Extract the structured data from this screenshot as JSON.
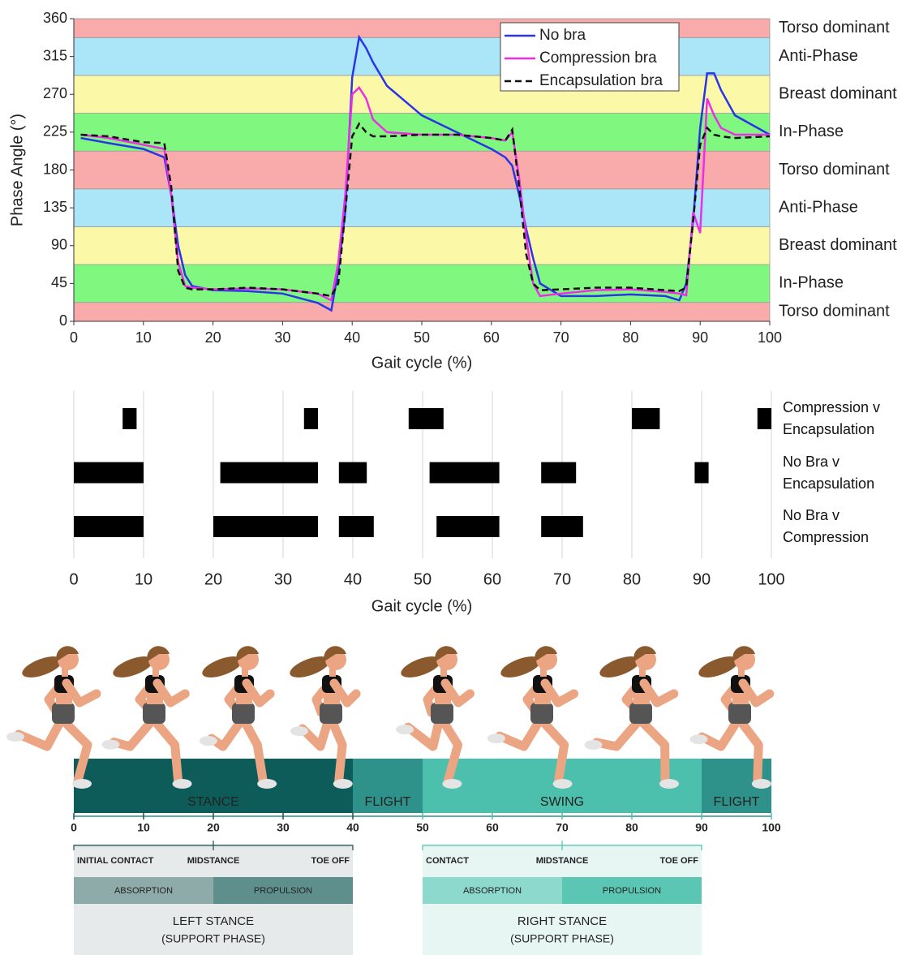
{
  "chart_data": [
    {
      "type": "line",
      "x": [
        1,
        5,
        10,
        13,
        14,
        15,
        16,
        17,
        20,
        25,
        30,
        35,
        37,
        38,
        39,
        40,
        41,
        42,
        43,
        45,
        50,
        55,
        60,
        62,
        63,
        64,
        65,
        66,
        67,
        70,
        75,
        80,
        85,
        87,
        88,
        89,
        90,
        91,
        92,
        93,
        95,
        100
      ],
      "series": [
        {
          "name": "No bra",
          "color": "#2a35e8",
          "dashed": false,
          "values": [
            218,
            212,
            205,
            195,
            150,
            90,
            55,
            42,
            37,
            36,
            33,
            22,
            13,
            60,
            130,
            290,
            338,
            325,
            308,
            280,
            245,
            225,
            205,
            195,
            185,
            150,
            110,
            75,
            45,
            30,
            30,
            32,
            30,
            25,
            45,
            120,
            230,
            295,
            295,
            275,
            245,
            222
          ]
        },
        {
          "name": "Compression bra",
          "color": "#ef2de8",
          "dashed": false,
          "values": [
            222,
            218,
            210,
            205,
            150,
            70,
            42,
            40,
            38,
            39,
            38,
            33,
            25,
            70,
            150,
            270,
            278,
            265,
            240,
            225,
            222,
            222,
            218,
            215,
            225,
            170,
            100,
            45,
            30,
            33,
            37,
            38,
            35,
            33,
            31,
            130,
            105,
            265,
            245,
            230,
            222,
            222
          ]
        },
        {
          "name": "Encapsulation bra",
          "color": "#111111",
          "dashed": true,
          "values": [
            222,
            220,
            213,
            212,
            160,
            60,
            40,
            38,
            38,
            40,
            38,
            33,
            30,
            45,
            130,
            220,
            235,
            225,
            220,
            220,
            222,
            222,
            218,
            215,
            228,
            160,
            80,
            45,
            37,
            38,
            40,
            40,
            37,
            36,
            40,
            120,
            210,
            230,
            222,
            220,
            218,
            220
          ]
        }
      ],
      "xlim": [
        0,
        100
      ],
      "xticks": [
        0,
        10,
        20,
        30,
        40,
        50,
        60,
        70,
        80,
        90,
        100
      ],
      "ylim": [
        0,
        360
      ],
      "yticks": [
        0,
        45,
        90,
        135,
        180,
        225,
        270,
        315,
        360
      ],
      "xlabel": "Gait cycle (%)",
      "ylabel": "Phase Angle (°)",
      "legend": "upper right",
      "bands": [
        {
          "label": "Torso dominant",
          "from": 0,
          "to": 22.5,
          "color": "#f9aaaa"
        },
        {
          "label": "In-Phase",
          "from": 22.5,
          "to": 67.5,
          "color": "#80f880"
        },
        {
          "label": "Breast dominant",
          "from": 67.5,
          "to": 112.5,
          "color": "#fbf8a8"
        },
        {
          "label": "Anti-Phase",
          "from": 112.5,
          "to": 157.5,
          "color": "#aae6f7"
        },
        {
          "label": "Torso dominant",
          "from": 157.5,
          "to": 202.5,
          "color": "#f9aaaa"
        },
        {
          "label": "In-Phase",
          "from": 202.5,
          "to": 247.5,
          "color": "#80f880"
        },
        {
          "label": "Breast dominant",
          "from": 247.5,
          "to": 292.5,
          "color": "#fbf8a8"
        },
        {
          "label": "Anti-Phase",
          "from": 292.5,
          "to": 337.5,
          "color": "#aae6f7"
        },
        {
          "label": "Torso dominant",
          "from": 337.5,
          "to": 360,
          "color": "#f9aaaa"
        }
      ]
    },
    {
      "type": "interval",
      "series": [
        {
          "name": "Compression v Encapsulation",
          "intervals": [
            [
              7,
              9
            ],
            [
              33,
              35
            ],
            [
              48,
              53
            ],
            [
              80,
              84
            ],
            [
              98,
              100
            ]
          ]
        },
        {
          "name": "No Bra v Encapsulation",
          "intervals": [
            [
              0,
              10
            ],
            [
              21,
              35
            ],
            [
              38,
              42
            ],
            [
              51,
              61
            ],
            [
              67,
              72
            ],
            [
              89,
              91
            ]
          ]
        },
        {
          "name": "No Bra v Compression",
          "intervals": [
            [
              0,
              10
            ],
            [
              20,
              35
            ],
            [
              38,
              43
            ],
            [
              52,
              61
            ],
            [
              67,
              73
            ]
          ]
        }
      ],
      "color": "#000000",
      "grid": true,
      "xlim": [
        0,
        100
      ],
      "xticks": [
        0,
        10,
        20,
        30,
        40,
        50,
        60,
        70,
        80,
        90,
        100
      ],
      "xlabel": "Gait cycle (%)"
    }
  ],
  "gait_diagram": {
    "phases": [
      {
        "label": "STANCE",
        "from": 0,
        "to": 40,
        "color": "#0d5c5a"
      },
      {
        "label": "FLIGHT",
        "from": 40,
        "to": 50,
        "color": "#2e918a"
      },
      {
        "label": "SWING",
        "from": 50,
        "to": 90,
        "color": "#4cbfad"
      },
      {
        "label": "FLIGHT",
        "from": 90,
        "to": 100,
        "color": "#2e918a"
      }
    ],
    "ticks": [
      0,
      10,
      20,
      30,
      40,
      50,
      60,
      70,
      80,
      90,
      100
    ],
    "stances": [
      {
        "from": 0,
        "split": 20,
        "to": 40,
        "events": [
          "INITIAL CONTACT",
          "MIDSTANCE",
          "TOE OFF"
        ],
        "subphases": [
          "ABSORPTION",
          "PROPULSION"
        ],
        "title": "LEFT STANCE",
        "subtitle": "(SUPPORT PHASE)",
        "colors": {
          "text": "#1d4f4d",
          "box": "#e6eaea",
          "absorption": "#8eaba9",
          "propulsion": "#5f8f8c"
        }
      },
      {
        "from": 50,
        "split": 70,
        "to": 90,
        "events": [
          "CONTACT",
          "MIDSTANCE",
          "TOE OFF"
        ],
        "subphases": [
          "ABSORPTION",
          "PROPULSION"
        ],
        "title": "RIGHT STANCE",
        "subtitle": "(SUPPORT PHASE)",
        "colors": {
          "text": "#55c3b2",
          "box": "#e7f5f3",
          "absorption": "#8ed9cd",
          "propulsion": "#5cc6b5"
        }
      }
    ]
  }
}
